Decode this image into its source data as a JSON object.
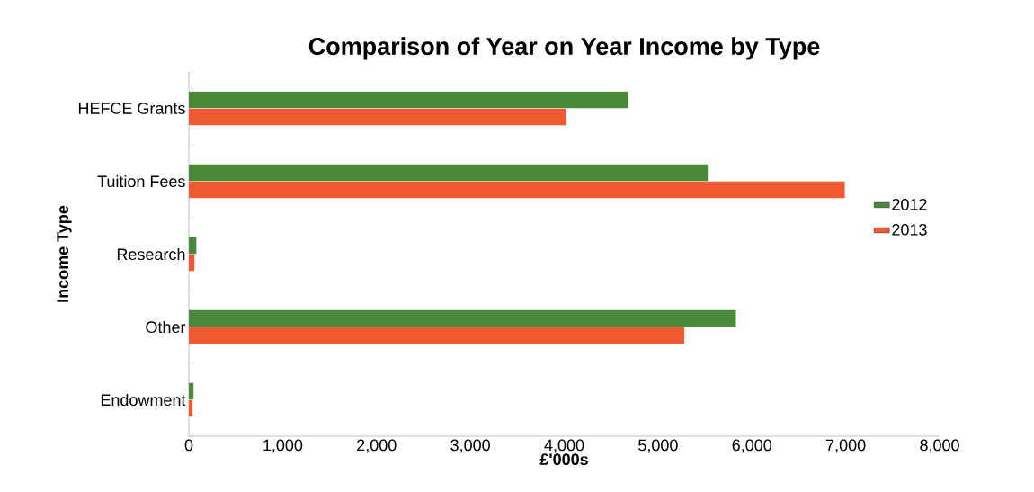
{
  "chart_data": {
    "type": "bar",
    "orientation": "horizontal",
    "title": "Comparison of Year on Year Income by Type",
    "xlabel": "£'000s",
    "ylabel": "Income Type",
    "categories": [
      "HEFCE Grants",
      "Tuition Fees",
      "Research",
      "Other",
      "Endowment"
    ],
    "series": [
      {
        "name": "2012",
        "color": "#4a8a3a",
        "values": [
          4680,
          5530,
          80,
          5830,
          50
        ]
      },
      {
        "name": "2013",
        "color": "#f05a32",
        "values": [
          4020,
          6990,
          60,
          5280,
          40
        ]
      }
    ],
    "xlim": [
      0,
      8000
    ],
    "xticks": [
      0,
      {
        "value": 1000,
        "label": "1,000"
      },
      {
        "value": 2000,
        "label": "2,000"
      },
      {
        "value": 3000,
        "label": "3,000"
      },
      {
        "value": 4000,
        "label": "4,000"
      },
      {
        "value": 5000,
        "label": "5,000"
      },
      {
        "value": 6000,
        "label": "6,000"
      },
      {
        "value": 7000,
        "label": "7,000"
      },
      {
        "value": 8000,
        "label": "8,000"
      }
    ],
    "grid": false,
    "legend": "right"
  }
}
